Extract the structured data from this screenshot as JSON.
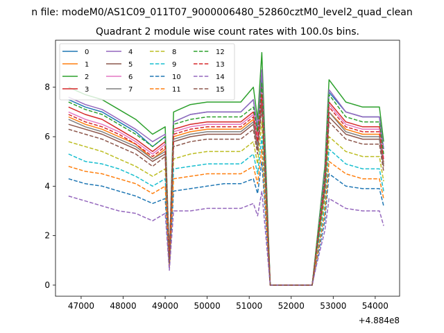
{
  "figure": {
    "suptitle": "n file: modeM0/AS1C09_011T07_9000006480_52860cztM0_level2_quad_clean",
    "title": "Quadrant 2 module wise count rates with 100.0s bins.",
    "x_offset_label": "+4.884e8"
  },
  "chart_data": {
    "type": "line",
    "title": "Quadrant 2 module wise count rates with 100.0s bins.",
    "xlabel": "",
    "ylabel": "",
    "xlim": [
      46390,
      54580
    ],
    "ylim": [
      -0.45,
      9.9
    ],
    "x_offset": 488400000,
    "x_ticks": [
      47000,
      48000,
      49000,
      50000,
      51000,
      52000,
      53000,
      54000
    ],
    "x_tick_labels": [
      "47000",
      "48000",
      "49000",
      "50000",
      "51000",
      "52000",
      "53000",
      "54000"
    ],
    "y_ticks": [
      0,
      2,
      4,
      6,
      8
    ],
    "y_tick_labels": [
      "0",
      "2",
      "4",
      "6",
      "8"
    ],
    "grid": false,
    "legend": {
      "placement": "upper-left",
      "columns": 4
    },
    "x": [
      46700,
      47100,
      47500,
      47900,
      48300,
      48700,
      49000,
      49100,
      49200,
      49600,
      50000,
      50400,
      50800,
      51100,
      51200,
      51300,
      51500,
      51600,
      52000,
      52500,
      52600,
      52800,
      52900,
      53300,
      53700,
      54100,
      54200
    ],
    "series": [
      {
        "name": "0",
        "color": "#1f77b4",
        "dash": "solid",
        "values": [
          7.5,
          7.2,
          7.0,
          6.6,
          6.2,
          5.6,
          6.0,
          1.0,
          6.6,
          6.9,
          7.0,
          7.0,
          7.0,
          7.5,
          6.3,
          8.5,
          0.0,
          0.0,
          0.0,
          0.0,
          1.5,
          4.5,
          7.8,
          7.0,
          6.8,
          6.8,
          5.5
        ]
      },
      {
        "name": "1",
        "color": "#ff7f0e",
        "dash": "solid",
        "values": [
          6.8,
          6.5,
          6.3,
          6.0,
          5.7,
          5.1,
          5.5,
          0.9,
          6.0,
          6.2,
          6.3,
          6.3,
          6.3,
          6.7,
          5.7,
          7.6,
          0.0,
          0.0,
          0.0,
          0.0,
          1.4,
          4.0,
          7.0,
          6.3,
          6.1,
          6.1,
          4.9
        ]
      },
      {
        "name": "2",
        "color": "#2ca02c",
        "dash": "solid",
        "values": [
          8.0,
          7.7,
          7.5,
          7.1,
          6.7,
          6.1,
          6.4,
          1.1,
          7.0,
          7.3,
          7.4,
          7.4,
          7.4,
          8.0,
          6.7,
          9.4,
          0.0,
          0.0,
          0.0,
          0.0,
          1.6,
          4.8,
          8.3,
          7.4,
          7.2,
          7.2,
          5.8
        ]
      },
      {
        "name": "3",
        "color": "#d62728",
        "dash": "solid",
        "values": [
          7.2,
          6.9,
          6.7,
          6.3,
          5.9,
          5.4,
          5.8,
          1.0,
          6.3,
          6.5,
          6.6,
          6.6,
          6.6,
          7.0,
          6.0,
          8.0,
          0.0,
          0.0,
          0.0,
          0.0,
          1.4,
          4.3,
          7.4,
          6.6,
          6.4,
          6.4,
          5.1
        ]
      },
      {
        "name": "4",
        "color": "#9467bd",
        "dash": "solid",
        "values": [
          7.6,
          7.3,
          7.1,
          6.7,
          6.3,
          5.8,
          6.1,
          1.0,
          6.6,
          6.9,
          7.0,
          7.0,
          7.0,
          7.5,
          6.4,
          8.7,
          0.0,
          0.0,
          0.0,
          0.0,
          1.5,
          4.6,
          7.9,
          7.0,
          6.8,
          6.8,
          5.5
        ]
      },
      {
        "name": "5",
        "color": "#8c564b",
        "dash": "solid",
        "values": [
          6.5,
          6.3,
          6.1,
          5.8,
          5.5,
          5.0,
          5.3,
          0.9,
          5.8,
          6.0,
          6.1,
          6.1,
          6.1,
          6.5,
          5.5,
          7.4,
          0.0,
          0.0,
          0.0,
          0.0,
          1.3,
          3.9,
          6.8,
          6.1,
          5.9,
          5.9,
          4.8
        ]
      },
      {
        "name": "6",
        "color": "#e377c2",
        "dash": "solid",
        "values": [
          7.0,
          6.7,
          6.5,
          6.2,
          5.8,
          5.3,
          5.7,
          1.0,
          6.2,
          6.4,
          6.5,
          6.5,
          6.5,
          6.9,
          5.9,
          7.9,
          0.0,
          0.0,
          0.0,
          0.0,
          1.4,
          4.2,
          7.3,
          6.5,
          6.3,
          6.3,
          5.1
        ]
      },
      {
        "name": "7",
        "color": "#7f7f7f",
        "dash": "solid",
        "values": [
          6.7,
          6.4,
          6.2,
          5.9,
          5.6,
          5.1,
          5.4,
          0.9,
          5.9,
          6.1,
          6.2,
          6.2,
          6.2,
          6.6,
          5.6,
          7.5,
          0.0,
          0.0,
          0.0,
          0.0,
          1.3,
          4.0,
          7.0,
          6.2,
          6.0,
          6.0,
          4.9
        ]
      },
      {
        "name": "8",
        "color": "#bcbd22",
        "dash": "dashed",
        "values": [
          5.8,
          5.6,
          5.4,
          5.1,
          4.8,
          4.4,
          4.7,
          0.8,
          5.1,
          5.3,
          5.4,
          5.4,
          5.4,
          5.8,
          4.9,
          6.6,
          0.0,
          0.0,
          0.0,
          0.0,
          1.2,
          3.5,
          6.0,
          5.4,
          5.2,
          5.2,
          4.2
        ]
      },
      {
        "name": "9",
        "color": "#17becf",
        "dash": "dashed",
        "values": [
          5.3,
          5.0,
          4.9,
          4.7,
          4.4,
          4.0,
          4.3,
          0.8,
          4.7,
          4.8,
          4.9,
          4.9,
          4.9,
          5.3,
          4.5,
          6.0,
          0.0,
          0.0,
          0.0,
          0.0,
          1.1,
          3.2,
          5.5,
          4.9,
          4.7,
          4.7,
          3.8
        ]
      },
      {
        "name": "10",
        "color": "#1f77b4",
        "dash": "dashed",
        "values": [
          4.3,
          4.1,
          4.0,
          3.8,
          3.6,
          3.3,
          3.5,
          0.7,
          3.8,
          3.9,
          4.0,
          4.1,
          4.1,
          4.3,
          3.7,
          5.0,
          0.0,
          0.0,
          0.0,
          0.0,
          0.9,
          2.6,
          4.5,
          4.0,
          3.9,
          3.9,
          3.2
        ]
      },
      {
        "name": "11",
        "color": "#ff7f0e",
        "dash": "dashed",
        "values": [
          4.8,
          4.6,
          4.5,
          4.3,
          4.1,
          3.7,
          4.0,
          0.7,
          4.3,
          4.4,
          4.5,
          4.5,
          4.5,
          4.8,
          4.1,
          5.5,
          0.0,
          0.0,
          0.0,
          0.0,
          1.0,
          2.9,
          5.0,
          4.5,
          4.3,
          4.3,
          3.5
        ]
      },
      {
        "name": "12",
        "color": "#2ca02c",
        "dash": "dashed",
        "values": [
          7.4,
          7.1,
          6.9,
          6.5,
          6.1,
          5.6,
          6.0,
          1.0,
          6.5,
          6.7,
          6.8,
          6.8,
          6.8,
          7.2,
          6.2,
          8.2,
          0.0,
          0.0,
          0.0,
          0.0,
          1.5,
          4.4,
          7.7,
          6.8,
          6.6,
          6.6,
          5.3
        ]
      },
      {
        "name": "13",
        "color": "#d62728",
        "dash": "dashed",
        "values": [
          6.9,
          6.6,
          6.4,
          6.1,
          5.7,
          5.2,
          5.6,
          1.0,
          6.1,
          6.3,
          6.4,
          6.4,
          6.4,
          6.8,
          5.8,
          7.7,
          0.0,
          0.0,
          0.0,
          0.0,
          1.4,
          4.1,
          7.2,
          6.4,
          6.2,
          6.2,
          5.0
        ]
      },
      {
        "name": "14",
        "color": "#9467bd",
        "dash": "dashed",
        "values": [
          3.6,
          3.4,
          3.2,
          3.0,
          2.9,
          2.6,
          2.9,
          0.6,
          3.0,
          3.0,
          3.1,
          3.1,
          3.1,
          3.3,
          2.8,
          3.8,
          0.0,
          0.0,
          0.0,
          0.0,
          0.8,
          2.2,
          3.5,
          3.1,
          3.0,
          3.0,
          2.4
        ]
      },
      {
        "name": "15",
        "color": "#8c564b",
        "dash": "dashed",
        "values": [
          6.3,
          6.1,
          5.9,
          5.6,
          5.3,
          4.8,
          5.2,
          0.9,
          5.6,
          5.8,
          5.9,
          5.9,
          5.9,
          6.3,
          5.3,
          7.2,
          0.0,
          0.0,
          0.0,
          0.0,
          1.3,
          3.8,
          6.6,
          5.9,
          5.7,
          5.7,
          4.6
        ]
      }
    ]
  }
}
